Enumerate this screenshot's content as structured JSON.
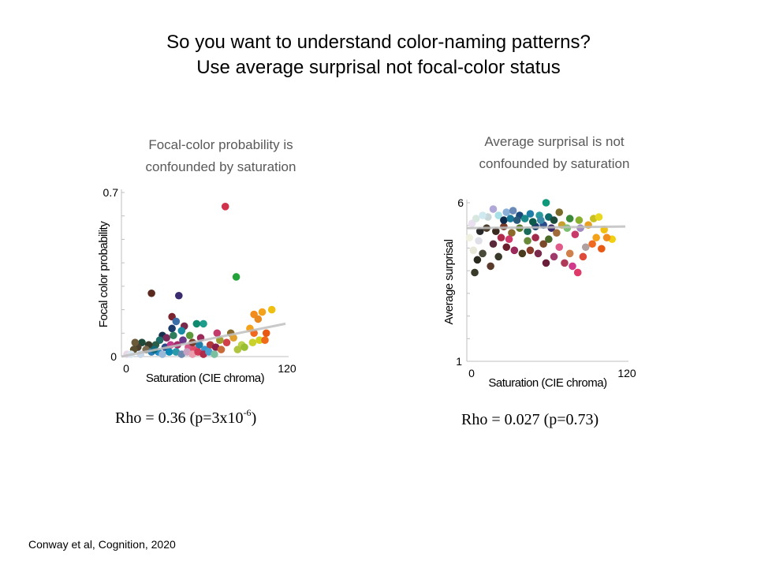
{
  "slide": {
    "title_line1": "So you want to understand color-naming patterns?",
    "title_line2": "Use average surprisal not focal-color status",
    "citation": "Conway et al,  Cognition, 2020"
  },
  "left_panel": {
    "subtitle_line1": "Focal-color probability is",
    "subtitle_line2": "confounded by saturation",
    "rho_prefix": "Rho = 0.36 (p=3x10",
    "rho_exponent": "-6",
    "rho_suffix": ")"
  },
  "right_panel": {
    "subtitle_line1": "Average surprisal is not",
    "subtitle_line2": "confounded by saturation",
    "rho_text": "Rho = 0.027 (p=0.73)"
  },
  "chart_data": [
    {
      "type": "scatter",
      "title": "Focal-color probability is confounded by saturation",
      "xlabel": "Saturation (CIE chroma)",
      "ylabel": "Focal color probability",
      "xlim": [
        0,
        120
      ],
      "ylim": [
        0,
        0.7
      ],
      "xtick_labels": [
        "0",
        "120"
      ],
      "ytick_labels": [
        "0",
        "0.7"
      ],
      "trend_line": {
        "x": [
          0,
          120
        ],
        "y": [
          0.0,
          0.14
        ],
        "color": "#c0c0c0"
      },
      "rho": 0.36,
      "p": "3x10^-6",
      "points": [
        {
          "x": 76,
          "y": 0.64,
          "color": "#d0314b"
        },
        {
          "x": 84,
          "y": 0.34,
          "color": "#22a33a"
        },
        {
          "x": 22,
          "y": 0.27,
          "color": "#5b2a1e"
        },
        {
          "x": 42,
          "y": 0.26,
          "color": "#3a2a6e"
        },
        {
          "x": 37,
          "y": 0.17,
          "color": "#7a2430"
        },
        {
          "x": 110,
          "y": 0.2,
          "color": "#f0c010"
        },
        {
          "x": 103,
          "y": 0.19,
          "color": "#f4a21a"
        },
        {
          "x": 97,
          "y": 0.18,
          "color": "#f28c1c"
        },
        {
          "x": 100,
          "y": 0.16,
          "color": "#e88a20"
        },
        {
          "x": 94,
          "y": 0.12,
          "color": "#f4a21a"
        },
        {
          "x": 97,
          "y": 0.1,
          "color": "#ef6a1e"
        },
        {
          "x": 101,
          "y": 0.07,
          "color": "#d4d020"
        },
        {
          "x": 96,
          "y": 0.06,
          "color": "#c8d22a"
        },
        {
          "x": 105,
          "y": 0.07,
          "color": "#f06a1a"
        },
        {
          "x": 106,
          "y": 0.1,
          "color": "#e85a14"
        },
        {
          "x": 80,
          "y": 0.1,
          "color": "#8a6a2a"
        },
        {
          "x": 88,
          "y": 0.05,
          "color": "#bcd24a"
        },
        {
          "x": 85,
          "y": 0.03,
          "color": "#b0c440"
        },
        {
          "x": 77,
          "y": 0.06,
          "color": "#d0414b"
        },
        {
          "x": 70,
          "y": 0.1,
          "color": "#c43a6a"
        },
        {
          "x": 60,
          "y": 0.14,
          "color": "#1e9c8c"
        },
        {
          "x": 55,
          "y": 0.14,
          "color": "#0e8a6e"
        },
        {
          "x": 46,
          "y": 0.13,
          "color": "#7a2a4a"
        },
        {
          "x": 40,
          "y": 0.15,
          "color": "#3a6ea8"
        },
        {
          "x": 37,
          "y": 0.12,
          "color": "#1a3a6a"
        },
        {
          "x": 30,
          "y": 0.09,
          "color": "#14304e"
        },
        {
          "x": 44,
          "y": 0.11,
          "color": "#1a8ca4"
        },
        {
          "x": 50,
          "y": 0.09,
          "color": "#5a9a3a"
        },
        {
          "x": 33,
          "y": 0.08,
          "color": "#7a2a5a"
        },
        {
          "x": 28,
          "y": 0.07,
          "color": "#1e6e6a"
        },
        {
          "x": 25,
          "y": 0.05,
          "color": "#2a5e4a"
        },
        {
          "x": 20,
          "y": 0.05,
          "color": "#3a3a2a"
        },
        {
          "x": 15,
          "y": 0.06,
          "color": "#1e4a3a"
        },
        {
          "x": 12,
          "y": 0.04,
          "color": "#4a4030"
        },
        {
          "x": 10,
          "y": 0.06,
          "color": "#6a5a3a"
        },
        {
          "x": 9,
          "y": 0.03,
          "color": "#5a5030"
        },
        {
          "x": 18,
          "y": 0.03,
          "color": "#7a6a50"
        },
        {
          "x": 22,
          "y": 0.02,
          "color": "#2a7ab4"
        },
        {
          "x": 27,
          "y": 0.02,
          "color": "#1f8cc8"
        },
        {
          "x": 32,
          "y": 0.04,
          "color": "#2a4a8a"
        },
        {
          "x": 36,
          "y": 0.05,
          "color": "#c23a8a"
        },
        {
          "x": 41,
          "y": 0.05,
          "color": "#a02a6a"
        },
        {
          "x": 45,
          "y": 0.07,
          "color": "#6a3a8a"
        },
        {
          "x": 49,
          "y": 0.04,
          "color": "#d45a8a"
        },
        {
          "x": 53,
          "y": 0.03,
          "color": "#e24a6a"
        },
        {
          "x": 57,
          "y": 0.05,
          "color": "#1e7ea8"
        },
        {
          "x": 61,
          "y": 0.03,
          "color": "#3a9ad0"
        },
        {
          "x": 65,
          "y": 0.05,
          "color": "#b03a3a"
        },
        {
          "x": 69,
          "y": 0.04,
          "color": "#8a1e4a"
        },
        {
          "x": 73,
          "y": 0.03,
          "color": "#c86a3a"
        },
        {
          "x": 30,
          "y": 0.01,
          "color": "#9ab8d8"
        },
        {
          "x": 35,
          "y": 0.02,
          "color": "#0a8ab4"
        },
        {
          "x": 40,
          "y": 0.02,
          "color": "#2a9aaa"
        },
        {
          "x": 44,
          "y": 0.01,
          "color": "#6a8ab0"
        },
        {
          "x": 48,
          "y": 0.02,
          "color": "#c8a0c0"
        },
        {
          "x": 52,
          "y": 0.01,
          "color": "#e8a0b0"
        },
        {
          "x": 56,
          "y": 0.02,
          "color": "#d23a5a"
        },
        {
          "x": 60,
          "y": 0.01,
          "color": "#b02a4a"
        },
        {
          "x": 64,
          "y": 0.02,
          "color": "#4aa0d0"
        },
        {
          "x": 68,
          "y": 0.01,
          "color": "#7ac0a0"
        },
        {
          "x": 4,
          "y": 0.01,
          "color": "#e8d8e8"
        },
        {
          "x": 7,
          "y": 0.01,
          "color": "#d8e8f0"
        },
        {
          "x": 14,
          "y": 0.01,
          "color": "#c8d8e8"
        },
        {
          "x": 24,
          "y": 0.03,
          "color": "#0e6a78"
        },
        {
          "x": 38,
          "y": 0.09,
          "color": "#2e7e5e"
        },
        {
          "x": 52,
          "y": 0.06,
          "color": "#7a3a2a"
        },
        {
          "x": 58,
          "y": 0.08,
          "color": "#9a2a5a"
        },
        {
          "x": 72,
          "y": 0.07,
          "color": "#a0a030"
        },
        {
          "x": 82,
          "y": 0.08,
          "color": "#e0a030"
        },
        {
          "x": 90,
          "y": 0.04,
          "color": "#98c030"
        }
      ]
    },
    {
      "type": "scatter",
      "title": "Average surprisal is not confounded by saturation",
      "xlabel": "Saturation (CIE chroma)",
      "ylabel": "Average surprisal",
      "xlim": [
        0,
        120
      ],
      "ylim": [
        1,
        6
      ],
      "xtick_labels": [
        "0",
        "120"
      ],
      "ytick_labels": [
        "1",
        "6"
      ],
      "trend_line": {
        "x": [
          0,
          120
        ],
        "y": [
          5.2,
          5.25
        ],
        "color": "#c0c0c0"
      },
      "rho": 0.027,
      "p": 0.73,
      "points": [
        {
          "x": 60,
          "y": 6.0,
          "color": "#0e9a7a"
        },
        {
          "x": 20,
          "y": 5.8,
          "color": "#b0a8d8"
        },
        {
          "x": 30,
          "y": 5.7,
          "color": "#8ab0d8"
        },
        {
          "x": 35,
          "y": 5.75,
          "color": "#6a8ab8"
        },
        {
          "x": 40,
          "y": 5.6,
          "color": "#1a4a7a"
        },
        {
          "x": 48,
          "y": 5.65,
          "color": "#1e7ea8"
        },
        {
          "x": 55,
          "y": 5.6,
          "color": "#2a9a9a"
        },
        {
          "x": 62,
          "y": 5.55,
          "color": "#0e6a6a"
        },
        {
          "x": 70,
          "y": 5.7,
          "color": "#7a6a2a"
        },
        {
          "x": 78,
          "y": 5.5,
          "color": "#3a8a3a"
        },
        {
          "x": 85,
          "y": 5.45,
          "color": "#8ab030"
        },
        {
          "x": 96,
          "y": 5.5,
          "color": "#c8c020"
        },
        {
          "x": 100,
          "y": 5.55,
          "color": "#e8d820"
        },
        {
          "x": 92,
          "y": 5.3,
          "color": "#e8a020"
        },
        {
          "x": 104,
          "y": 5.15,
          "color": "#f0c010"
        },
        {
          "x": 110,
          "y": 4.85,
          "color": "#f0d010"
        },
        {
          "x": 98,
          "y": 4.9,
          "color": "#f4a21a"
        },
        {
          "x": 106,
          "y": 4.9,
          "color": "#f28c1c"
        },
        {
          "x": 95,
          "y": 4.7,
          "color": "#ef6a1e"
        },
        {
          "x": 102,
          "y": 4.55,
          "color": "#e85a14"
        },
        {
          "x": 90,
          "y": 4.6,
          "color": "#b0a0a0"
        },
        {
          "x": 88,
          "y": 4.3,
          "color": "#e04a3a"
        },
        {
          "x": 78,
          "y": 4.4,
          "color": "#d0804a"
        },
        {
          "x": 74,
          "y": 4.1,
          "color": "#b03a5a"
        },
        {
          "x": 80,
          "y": 4.0,
          "color": "#d03a8a"
        },
        {
          "x": 84,
          "y": 3.8,
          "color": "#e03a6a"
        },
        {
          "x": 60,
          "y": 4.1,
          "color": "#6a1e3a"
        },
        {
          "x": 66,
          "y": 4.3,
          "color": "#a03a6a"
        },
        {
          "x": 54,
          "y": 4.4,
          "color": "#7a2a4a"
        },
        {
          "x": 48,
          "y": 4.5,
          "color": "#8a3a2a"
        },
        {
          "x": 42,
          "y": 4.4,
          "color": "#4a3a1e"
        },
        {
          "x": 36,
          "y": 4.5,
          "color": "#9a2a5a"
        },
        {
          "x": 30,
          "y": 4.6,
          "color": "#6a1e2a"
        },
        {
          "x": 24,
          "y": 4.3,
          "color": "#3a3a2a"
        },
        {
          "x": 18,
          "y": 4.0,
          "color": "#5a3a2a"
        },
        {
          "x": 12,
          "y": 4.4,
          "color": "#4a4a3a"
        },
        {
          "x": 8,
          "y": 4.2,
          "color": "#2a2a1e"
        },
        {
          "x": 6,
          "y": 3.8,
          "color": "#3a3a2a"
        },
        {
          "x": 10,
          "y": 5.1,
          "color": "#2a2a2a"
        },
        {
          "x": 15,
          "y": 5.2,
          "color": "#4a3a2a"
        },
        {
          "x": 22,
          "y": 5.1,
          "color": "#3a2a1e"
        },
        {
          "x": 28,
          "y": 5.25,
          "color": "#7a3a2a"
        },
        {
          "x": 34,
          "y": 5.05,
          "color": "#8a6a2a"
        },
        {
          "x": 40,
          "y": 5.2,
          "color": "#5a7a2a"
        },
        {
          "x": 46,
          "y": 5.1,
          "color": "#1a6a5a"
        },
        {
          "x": 52,
          "y": 5.25,
          "color": "#1a3a6a"
        },
        {
          "x": 58,
          "y": 5.3,
          "color": "#2a4a8a"
        },
        {
          "x": 64,
          "y": 5.2,
          "color": "#3a2a6a"
        },
        {
          "x": 68,
          "y": 5.05,
          "color": "#a06a3a"
        },
        {
          "x": 72,
          "y": 5.3,
          "color": "#c8a030"
        },
        {
          "x": 76,
          "y": 5.2,
          "color": "#7ac070"
        },
        {
          "x": 82,
          "y": 5.0,
          "color": "#c83a6a"
        },
        {
          "x": 86,
          "y": 5.2,
          "color": "#a08ac0"
        },
        {
          "x": 16,
          "y": 5.55,
          "color": "#c8d8d8"
        },
        {
          "x": 24,
          "y": 5.6,
          "color": "#a8e0e8"
        },
        {
          "x": 28,
          "y": 5.45,
          "color": "#0e2a4a"
        },
        {
          "x": 33,
          "y": 5.5,
          "color": "#1a7a9a"
        },
        {
          "x": 38,
          "y": 5.45,
          "color": "#2a5a7a"
        },
        {
          "x": 44,
          "y": 5.5,
          "color": "#1a8a8a"
        },
        {
          "x": 50,
          "y": 5.4,
          "color": "#0e5a4a"
        },
        {
          "x": 56,
          "y": 5.45,
          "color": "#3a8aa8"
        },
        {
          "x": 66,
          "y": 5.45,
          "color": "#1a4a3a"
        },
        {
          "x": 4,
          "y": 5.35,
          "color": "#e8e0f0"
        },
        {
          "x": 7,
          "y": 5.5,
          "color": "#d8e8e0"
        },
        {
          "x": 12,
          "y": 5.6,
          "color": "#d0e8f0"
        },
        {
          "x": 2,
          "y": 4.9,
          "color": "#f0f0e0"
        },
        {
          "x": 5,
          "y": 4.5,
          "color": "#e8e8d8"
        },
        {
          "x": 9,
          "y": 4.8,
          "color": "#e0e0e8"
        },
        {
          "x": 20,
          "y": 4.7,
          "color": "#5a2a3a"
        },
        {
          "x": 26,
          "y": 4.9,
          "color": "#b02a4a"
        },
        {
          "x": 32,
          "y": 4.85,
          "color": "#d03a6a"
        },
        {
          "x": 58,
          "y": 4.7,
          "color": "#7a4a2a"
        },
        {
          "x": 62,
          "y": 4.85,
          "color": "#4a6a2a"
        },
        {
          "x": 70,
          "y": 4.6,
          "color": "#e05a8a"
        },
        {
          "x": 52,
          "y": 4.9,
          "color": "#a02a4a"
        },
        {
          "x": 46,
          "y": 4.8,
          "color": "#6a8a3a"
        }
      ]
    }
  ]
}
